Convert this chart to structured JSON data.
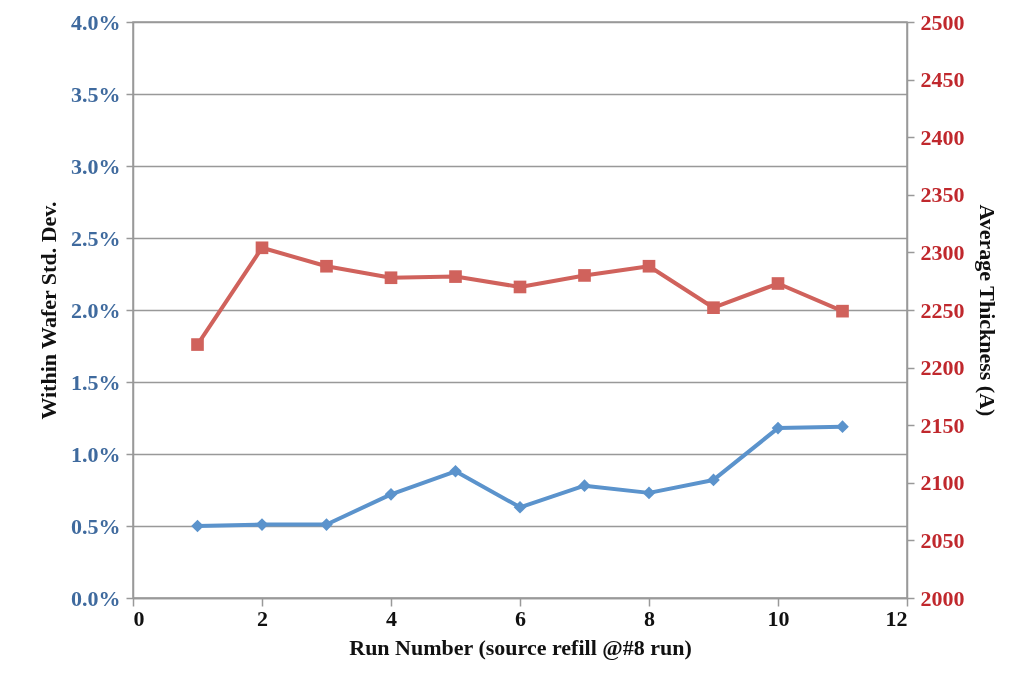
{
  "chart_data": {
    "type": "line",
    "xlabel": "Run Number (source refill @#8 run)",
    "ylabel": "Within Wafer Std. Dev.",
    "y2label": "Average Thickness (A)",
    "x": [
      1,
      2,
      3,
      4,
      5,
      6,
      7,
      8,
      9,
      10,
      11
    ],
    "xlim": [
      0,
      12
    ],
    "xticks": [
      0,
      2,
      4,
      6,
      8,
      10,
      12
    ],
    "ylim": [
      0,
      4
    ],
    "yticks": [
      {
        "value": 0,
        "label": "0.0%"
      },
      {
        "value": 0.5,
        "label": "0.5%"
      },
      {
        "value": 1,
        "label": "1.0%"
      },
      {
        "value": 1.5,
        "label": "1.5%"
      },
      {
        "value": 2,
        "label": "2.0%"
      },
      {
        "value": 2.5,
        "label": "2.5%"
      },
      {
        "value": 3,
        "label": "3.0%"
      },
      {
        "value": 3.5,
        "label": "3.5%"
      },
      {
        "value": 4,
        "label": "4.0%"
      }
    ],
    "y2lim": [
      2000,
      2500
    ],
    "y2ticks": [
      2000,
      2050,
      2100,
      2150,
      2200,
      2250,
      2300,
      2350,
      2400,
      2450,
      2500
    ],
    "grid": "y",
    "series": [
      {
        "color": "#5b93cc",
        "marker": "diamond",
        "values": [
          0.5,
          0.51,
          0.51,
          0.72,
          0.88,
          0.63,
          0.78,
          0.73,
          0.82,
          1.18,
          1.19
        ]
      },
      {
        "color": "#d0625c",
        "marker": "square",
        "axis": "y2",
        "values": [
          2220,
          2304,
          2288,
          2278,
          2279,
          2270,
          2280,
          2288,
          2252,
          2273,
          2249
        ]
      }
    ]
  }
}
